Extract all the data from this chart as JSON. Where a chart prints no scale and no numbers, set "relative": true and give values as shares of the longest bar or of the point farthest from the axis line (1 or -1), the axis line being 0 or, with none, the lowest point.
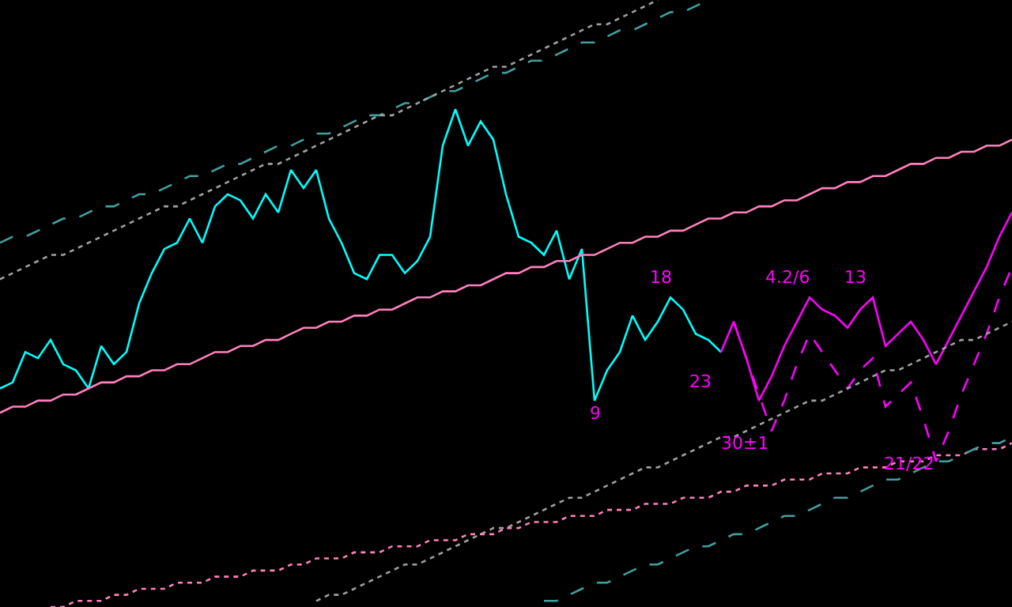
{
  "chart_data": {
    "type": "line",
    "relative": true,
    "marker": "none",
    "annotations": [
      "9",
      "18",
      "23",
      "30±1",
      "4.2/6",
      "13",
      "21/22"
    ],
    "categories": [
      null,
      null,
      null,
      null,
      null,
      null,
      null,
      null,
      null,
      null,
      null,
      null,
      null,
      null,
      null,
      null,
      null,
      null,
      null,
      null,
      null,
      null,
      null,
      null,
      null,
      null,
      null,
      null,
      null,
      null,
      null,
      null,
      null,
      null,
      null,
      null,
      null,
      null,
      null,
      null,
      null,
      null,
      null,
      null,
      null,
      null,
      null,
      null,
      null,
      null,
      null,
      null,
      null,
      null,
      null,
      null,
      null,
      null,
      null,
      null,
      null,
      null,
      null,
      null,
      null,
      null,
      null,
      null,
      null,
      null,
      null,
      null,
      null,
      null,
      null,
      null,
      null,
      null,
      null,
      null,
      null
    ],
    "series": [
      {
        "color": "#00ffff",
        "line_style": "solid",
        "values": [
          0.36,
          0.37,
          0.42,
          0.41,
          0.44,
          0.4,
          0.39,
          0.36,
          0.43,
          0.4,
          0.42,
          0.5,
          0.55,
          0.59,
          0.6,
          0.64,
          0.6,
          0.66,
          0.68,
          0.67,
          0.64,
          0.68,
          0.65,
          0.72,
          0.69,
          0.72,
          0.64,
          0.6,
          0.55,
          0.54,
          0.58,
          0.58,
          0.55,
          0.57,
          0.61,
          0.76,
          0.82,
          0.76,
          0.8,
          0.77,
          0.68,
          0.61,
          0.6,
          0.58,
          0.62,
          0.54,
          0.59,
          0.34,
          0.39,
          0.42,
          0.48,
          0.44,
          0.47,
          0.51,
          0.49,
          0.45,
          0.44,
          0.42,
          null,
          null,
          null,
          null,
          null,
          null,
          null,
          null,
          null,
          null,
          null,
          null,
          null,
          null,
          null,
          null,
          null,
          null,
          null,
          null,
          null,
          null,
          null
        ]
      },
      {
        "color": "#ff00ff",
        "line_style": "solid",
        "values": [
          null,
          null,
          null,
          null,
          null,
          null,
          null,
          null,
          null,
          null,
          null,
          null,
          null,
          null,
          null,
          null,
          null,
          null,
          null,
          null,
          null,
          null,
          null,
          null,
          null,
          null,
          null,
          null,
          null,
          null,
          null,
          null,
          null,
          null,
          null,
          null,
          null,
          null,
          null,
          null,
          null,
          null,
          null,
          null,
          null,
          null,
          null,
          null,
          null,
          null,
          null,
          null,
          null,
          null,
          null,
          null,
          null,
          0.42,
          0.47,
          0.41,
          0.34,
          0.38,
          0.43,
          0.47,
          0.51,
          0.49,
          0.48,
          0.46,
          0.49,
          0.51,
          0.43,
          0.45,
          0.47,
          0.44,
          0.4,
          0.44,
          0.48,
          0.52,
          0.56,
          0.61,
          0.65
        ]
      },
      {
        "color": "#ff00ff",
        "line_style": "dashed",
        "values": [
          null,
          null,
          null,
          null,
          null,
          null,
          null,
          null,
          null,
          null,
          null,
          null,
          null,
          null,
          null,
          null,
          null,
          null,
          null,
          null,
          null,
          null,
          null,
          null,
          null,
          null,
          null,
          null,
          null,
          null,
          null,
          null,
          null,
          null,
          null,
          null,
          null,
          null,
          null,
          null,
          null,
          null,
          null,
          null,
          null,
          null,
          null,
          null,
          null,
          null,
          null,
          null,
          null,
          null,
          null,
          null,
          null,
          null,
          0.47,
          0.41,
          0.35,
          0.29,
          0.34,
          0.4,
          0.45,
          0.42,
          0.39,
          0.36,
          0.39,
          0.41,
          0.33,
          0.35,
          0.37,
          0.31,
          0.24,
          0.29,
          0.35,
          0.4,
          0.45,
          0.51,
          0.56
        ]
      },
      {
        "color": "#ff80c0",
        "line_style": "solid",
        "values": [
          0.32,
          0.33,
          0.33,
          0.34,
          0.34,
          0.35,
          0.35,
          0.36,
          0.37,
          0.37,
          0.38,
          0.38,
          0.39,
          0.39,
          0.4,
          0.4,
          0.41,
          0.42,
          0.42,
          0.43,
          0.43,
          0.44,
          0.44,
          0.45,
          0.46,
          0.46,
          0.47,
          0.47,
          0.48,
          0.48,
          0.49,
          0.49,
          0.5,
          0.51,
          0.51,
          0.52,
          0.52,
          0.53,
          0.53,
          0.54,
          0.55,
          0.55,
          0.56,
          0.56,
          0.57,
          0.57,
          0.58,
          0.58,
          0.59,
          0.6,
          0.6,
          0.61,
          0.61,
          0.62,
          0.62,
          0.63,
          0.64,
          0.64,
          0.65,
          0.65,
          0.66,
          0.66,
          0.67,
          0.67,
          0.68,
          0.69,
          0.69,
          0.7,
          0.7,
          0.71,
          0.71,
          0.72,
          0.73,
          0.73,
          0.74,
          0.74,
          0.75,
          0.75,
          0.76,
          0.76,
          0.77
        ]
      },
      {
        "color": "#40a0a0",
        "line_style": "dashed",
        "values": [
          0.6,
          0.61,
          0.61,
          0.62,
          0.63,
          0.64,
          0.64,
          0.65,
          0.66,
          0.66,
          0.67,
          0.68,
          0.68,
          0.69,
          0.7,
          0.71,
          0.71,
          0.72,
          0.73,
          0.73,
          0.74,
          0.75,
          0.76,
          0.76,
          0.77,
          0.78,
          0.78,
          0.79,
          0.8,
          0.81,
          0.81,
          0.82,
          0.83,
          0.83,
          0.84,
          0.85,
          0.85,
          0.86,
          0.87,
          0.88,
          0.88,
          0.89,
          0.9,
          0.9,
          0.91,
          0.92,
          0.93,
          0.93,
          0.94,
          0.95,
          0.95,
          0.96,
          0.97,
          0.98,
          0.98,
          0.99,
          1.0,
          null,
          null,
          null,
          null,
          null,
          null,
          null,
          null,
          null,
          null,
          null,
          null,
          null,
          null,
          null,
          null,
          null,
          null,
          null,
          null,
          null,
          null,
          null,
          null
        ]
      },
      {
        "color": "#a0a0a0",
        "line_style": "dotted",
        "values": [
          0.54,
          0.55,
          0.56,
          0.57,
          0.58,
          0.58,
          0.59,
          0.6,
          0.61,
          0.62,
          0.63,
          0.64,
          0.65,
          0.66,
          0.66,
          0.67,
          0.68,
          0.69,
          0.7,
          0.71,
          0.72,
          0.73,
          0.73,
          0.74,
          0.75,
          0.76,
          0.77,
          0.78,
          0.79,
          0.8,
          0.81,
          0.81,
          0.82,
          0.83,
          0.84,
          0.85,
          0.86,
          0.87,
          0.88,
          0.89,
          0.89,
          0.9,
          0.91,
          0.92,
          0.93,
          0.94,
          0.95,
          0.96,
          0.96,
          0.97,
          0.98,
          0.99,
          1.0,
          null,
          null,
          null,
          null,
          null,
          null,
          null,
          null,
          null,
          null,
          null,
          null,
          null,
          null,
          null,
          null,
          null,
          null,
          null,
          null,
          null,
          null,
          null,
          null,
          null,
          null,
          null,
          null
        ]
      },
      {
        "color": "#a0a0a0",
        "line_style": "dotted",
        "values": [
          null,
          null,
          null,
          null,
          null,
          null,
          null,
          null,
          null,
          null,
          null,
          null,
          null,
          null,
          null,
          null,
          null,
          null,
          null,
          null,
          null,
          null,
          null,
          null,
          null,
          0.01,
          0.02,
          0.02,
          0.03,
          0.04,
          0.05,
          0.06,
          0.07,
          0.07,
          0.08,
          0.09,
          0.1,
          0.11,
          0.12,
          0.13,
          0.13,
          0.14,
          0.15,
          0.16,
          0.17,
          0.18,
          0.18,
          0.19,
          0.2,
          0.21,
          0.22,
          0.23,
          0.23,
          0.24,
          0.25,
          0.26,
          0.27,
          0.28,
          0.28,
          0.29,
          0.3,
          0.31,
          0.32,
          0.33,
          0.34,
          0.34,
          0.35,
          0.36,
          0.37,
          0.38,
          0.39,
          0.39,
          0.4,
          0.41,
          0.42,
          0.43,
          0.44,
          0.44,
          0.45,
          0.46,
          0.47
        ]
      },
      {
        "color": "#ff80c0",
        "line_style": "dotted",
        "values": [
          null,
          null,
          null,
          null,
          0.0,
          0.0,
          0.01,
          0.01,
          0.01,
          0.02,
          0.02,
          0.03,
          0.03,
          0.03,
          0.04,
          0.04,
          0.04,
          0.05,
          0.05,
          0.05,
          0.06,
          0.06,
          0.06,
          0.07,
          0.07,
          0.08,
          0.08,
          0.08,
          0.09,
          0.09,
          0.09,
          0.1,
          0.1,
          0.1,
          0.11,
          0.11,
          0.11,
          0.12,
          0.12,
          0.12,
          0.13,
          0.13,
          0.14,
          0.14,
          0.14,
          0.15,
          0.15,
          0.15,
          0.16,
          0.16,
          0.16,
          0.17,
          0.17,
          0.17,
          0.18,
          0.18,
          0.18,
          0.19,
          0.19,
          0.2,
          0.2,
          0.2,
          0.21,
          0.21,
          0.21,
          0.22,
          0.22,
          0.22,
          0.23,
          0.23,
          0.23,
          0.24,
          0.24,
          0.24,
          0.25,
          0.25,
          0.25,
          0.26,
          0.26,
          0.26,
          0.27
        ]
      },
      {
        "color": "#40a0a0",
        "line_style": "dashed",
        "values": [
          null,
          null,
          null,
          null,
          null,
          null,
          null,
          null,
          null,
          null,
          null,
          null,
          null,
          null,
          null,
          null,
          null,
          null,
          null,
          null,
          null,
          null,
          null,
          null,
          null,
          null,
          null,
          null,
          null,
          null,
          null,
          null,
          null,
          null,
          null,
          null,
          null,
          null,
          null,
          null,
          null,
          null,
          null,
          0.01,
          0.01,
          0.02,
          0.03,
          0.04,
          0.04,
          0.05,
          0.06,
          0.07,
          0.07,
          0.08,
          0.09,
          0.1,
          0.1,
          0.11,
          0.12,
          0.12,
          0.13,
          0.14,
          0.15,
          0.15,
          0.16,
          0.17,
          0.18,
          0.18,
          0.19,
          0.2,
          0.21,
          0.21,
          0.22,
          0.23,
          0.24,
          0.24,
          0.25,
          0.26,
          0.27,
          0.27,
          0.28
        ]
      }
    ]
  }
}
